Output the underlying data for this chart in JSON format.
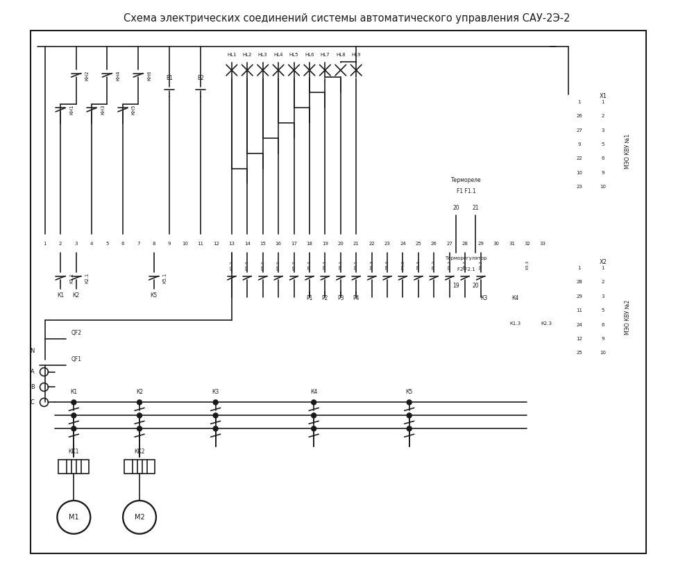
{
  "title": "Схема электрических соединений системы автоматического управления САУ-2Э-2",
  "bg_color": "#ffffff",
  "line_color": "#1a1a1a",
  "lw": 1.2,
  "HL_labels": [
    "HL1",
    "HL2",
    "HL3",
    "HL4",
    "HL5",
    "HL6",
    "HL7",
    "HL8",
    "HL9"
  ],
  "KH_pairs": [
    [
      3,
      2,
      "КН2",
      "КН1"
    ],
    [
      5,
      4,
      "КН4",
      "КН3"
    ],
    [
      7,
      6,
      "КН6",
      "КН5"
    ]
  ],
  "B_labels": [
    [
      "B1",
      9
    ],
    [
      "B2",
      11
    ]
  ],
  "meo1_rows_left": [
    "1",
    "26",
    "27",
    "9",
    "22",
    "10",
    "23"
  ],
  "meo1_rows_right": [
    "1",
    "2",
    "3",
    "5",
    "6",
    "9",
    "10"
  ],
  "meo2_rows_left": [
    "1",
    "28",
    "29",
    "11",
    "24",
    "12",
    "25"
  ],
  "meo2_rows_right": [
    "1",
    "2",
    "3",
    "5",
    "6",
    "9",
    "10"
  ],
  "phase_labels": [
    "N",
    "A",
    "B",
    "C"
  ],
  "K_labels_bottom": [
    "К1",
    "К2",
    "К3",
    "К4",
    "К5"
  ],
  "KK_labels": [
    "КК1",
    "КК2"
  ],
  "motor_labels": [
    "М1",
    "М2"
  ]
}
